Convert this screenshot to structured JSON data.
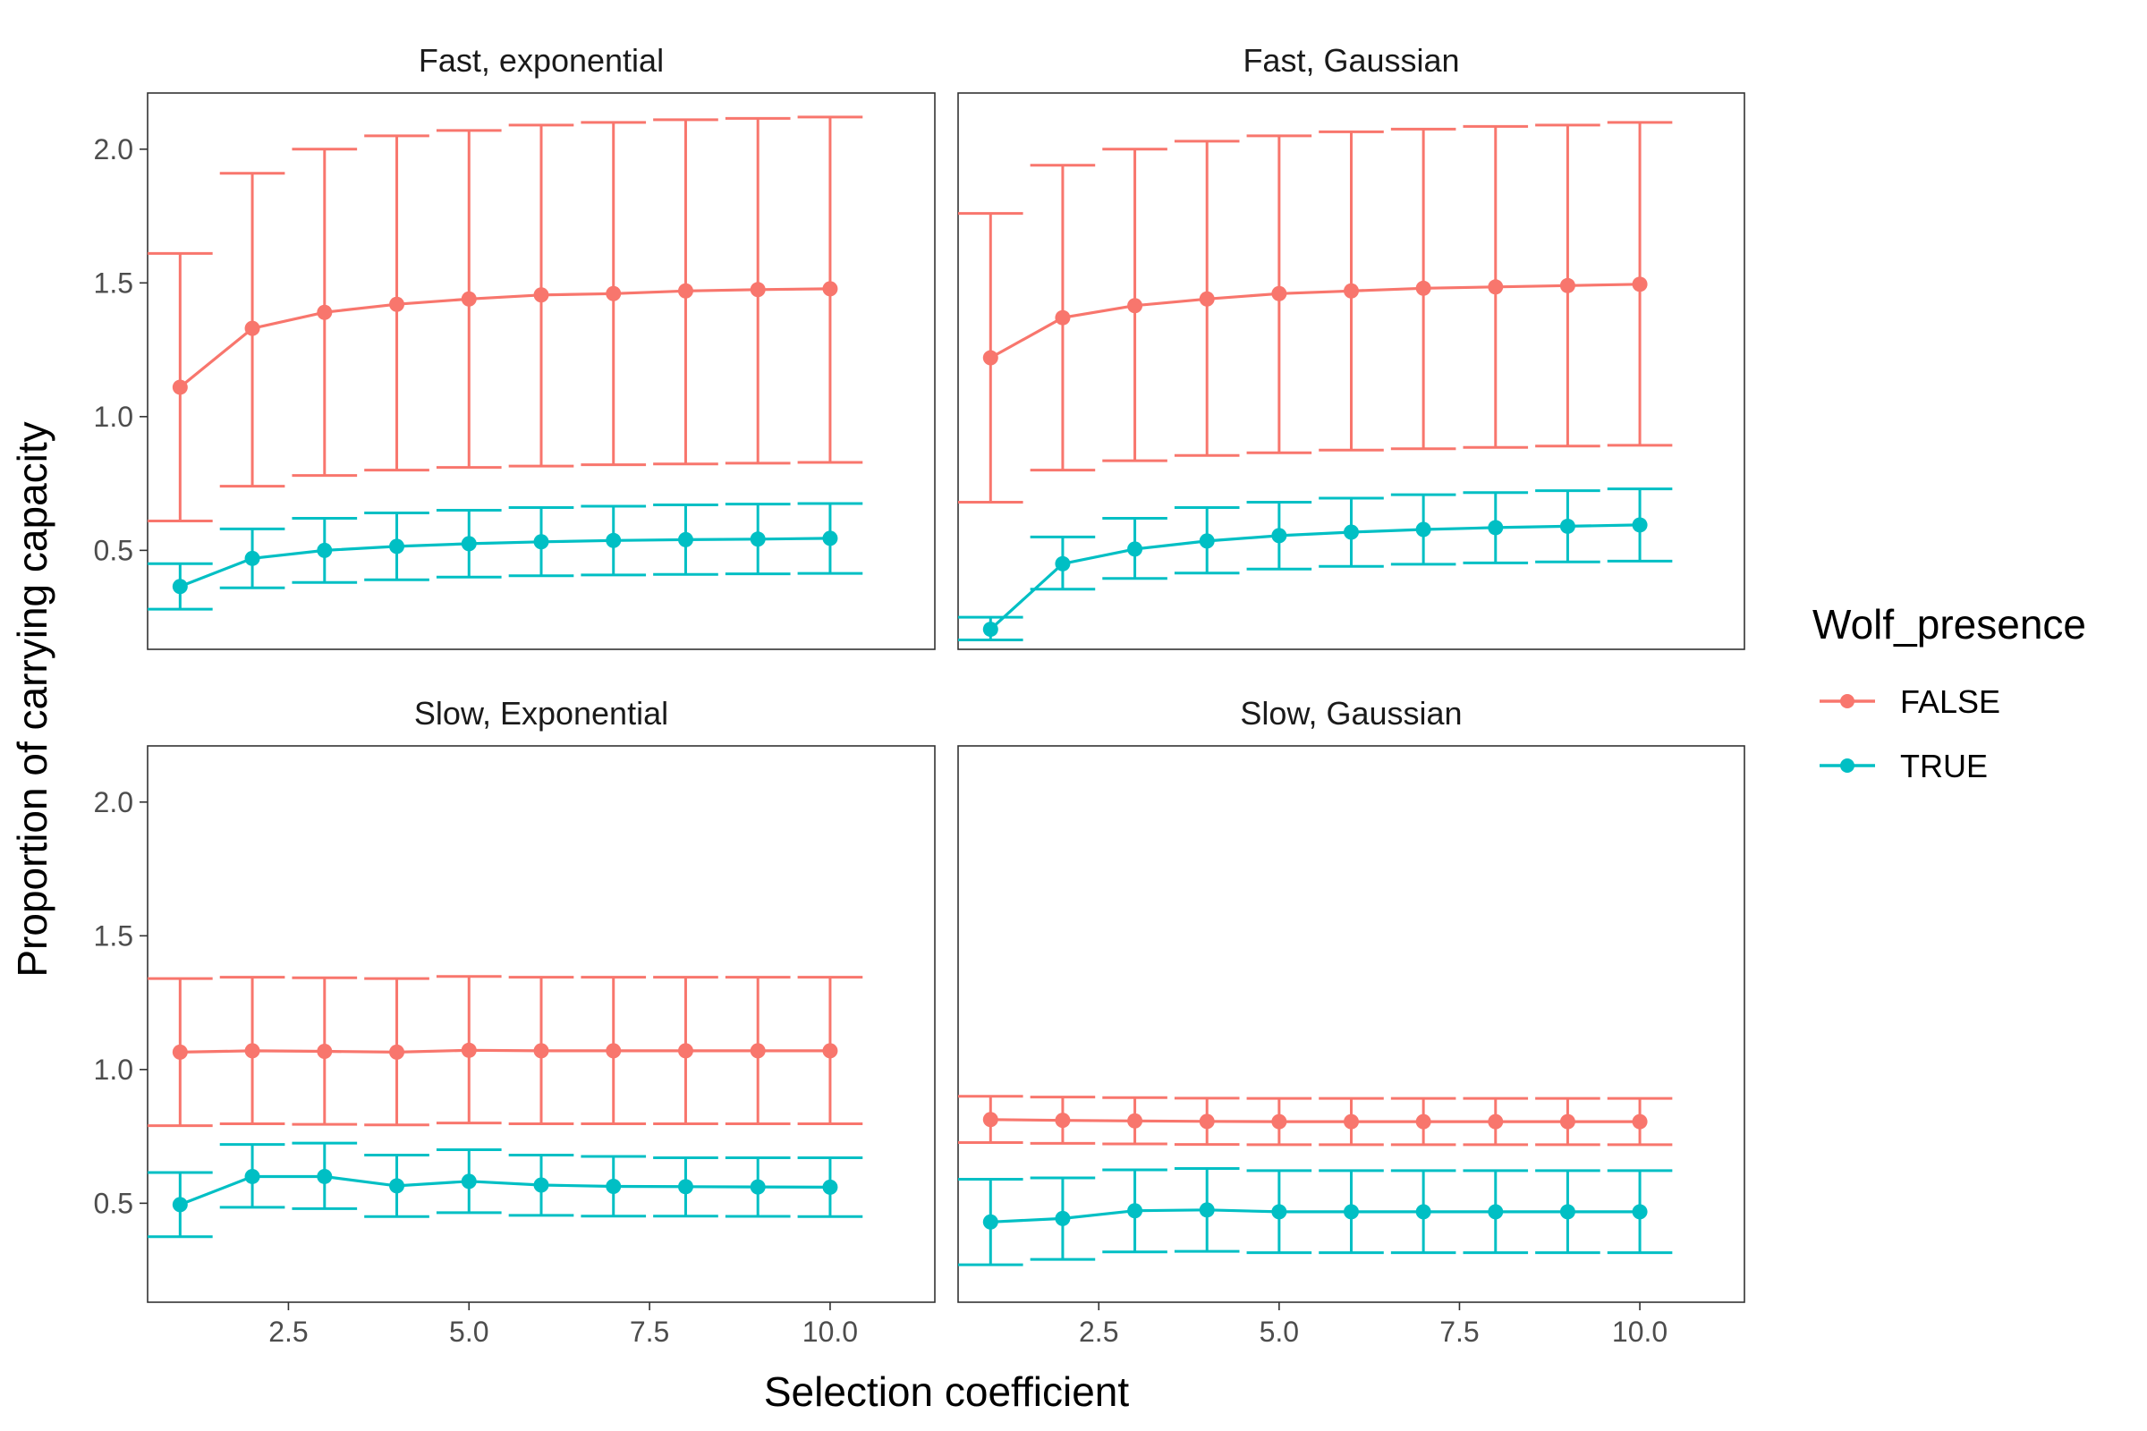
{
  "chart_data": {
    "type": "line",
    "xlabel": "Selection coefficient",
    "ylabel": "Proportion of carrying capacity",
    "xlim": [
      0.55,
      11.45
    ],
    "ylim": [
      0.13,
      2.21
    ],
    "x_ticks": [
      2.5,
      5.0,
      7.5,
      10.0
    ],
    "x_tick_labels": [
      "2.5",
      "5.0",
      "7.5",
      "10.0"
    ],
    "y_ticks": [
      0.5,
      1.0,
      1.5,
      2.0
    ],
    "y_tick_labels": [
      "0.5",
      "1.0",
      "1.5",
      "2.0"
    ],
    "grid": false,
    "legend": {
      "title": "Wolf_presence",
      "position": "right",
      "entries": [
        {
          "label": "FALSE",
          "color": "#F8766D"
        },
        {
          "label": "TRUE",
          "color": "#00BFC4"
        }
      ]
    },
    "x": [
      1,
      2,
      3,
      4,
      5,
      6,
      7,
      8,
      9,
      10
    ],
    "panels": [
      {
        "title": "Fast, exponential",
        "series": [
          {
            "name": "FALSE",
            "color": "#F8766D",
            "mean": [
              1.11,
              1.33,
              1.39,
              1.42,
              1.44,
              1.455,
              1.46,
              1.47,
              1.475,
              1.478
            ],
            "lower": [
              0.61,
              0.74,
              0.78,
              0.8,
              0.81,
              0.815,
              0.82,
              0.823,
              0.826,
              0.829
            ],
            "upper": [
              1.61,
              1.91,
              2.0,
              2.05,
              2.07,
              2.09,
              2.1,
              2.11,
              2.115,
              2.12
            ]
          },
          {
            "name": "TRUE",
            "color": "#00BFC4",
            "mean": [
              0.365,
              0.47,
              0.5,
              0.515,
              0.525,
              0.532,
              0.537,
              0.54,
              0.542,
              0.545
            ],
            "lower": [
              0.28,
              0.36,
              0.38,
              0.39,
              0.4,
              0.405,
              0.408,
              0.41,
              0.412,
              0.414
            ],
            "upper": [
              0.45,
              0.58,
              0.62,
              0.64,
              0.65,
              0.66,
              0.665,
              0.67,
              0.673,
              0.675
            ]
          }
        ]
      },
      {
        "title": "Fast, Gaussian",
        "series": [
          {
            "name": "FALSE",
            "color": "#F8766D",
            "mean": [
              1.22,
              1.37,
              1.415,
              1.44,
              1.46,
              1.47,
              1.48,
              1.485,
              1.49,
              1.495
            ],
            "lower": [
              0.68,
              0.8,
              0.835,
              0.855,
              0.865,
              0.875,
              0.88,
              0.885,
              0.89,
              0.893
            ],
            "upper": [
              1.76,
              1.94,
              2.0,
              2.03,
              2.05,
              2.065,
              2.075,
              2.085,
              2.09,
              2.1
            ]
          },
          {
            "name": "TRUE",
            "color": "#00BFC4",
            "mean": [
              0.205,
              0.45,
              0.505,
              0.535,
              0.555,
              0.568,
              0.578,
              0.585,
              0.59,
              0.595
            ],
            "lower": [
              0.165,
              0.355,
              0.395,
              0.415,
              0.43,
              0.44,
              0.448,
              0.453,
              0.457,
              0.46
            ],
            "upper": [
              0.25,
              0.55,
              0.62,
              0.66,
              0.68,
              0.695,
              0.708,
              0.716,
              0.723,
              0.73
            ]
          }
        ]
      },
      {
        "title": "Slow, Exponential",
        "series": [
          {
            "name": "FALSE",
            "color": "#F8766D",
            "mean": [
              1.065,
              1.07,
              1.068,
              1.065,
              1.072,
              1.07,
              1.07,
              1.07,
              1.07,
              1.07
            ],
            "lower": [
              0.79,
              0.797,
              0.795,
              0.793,
              0.8,
              0.797,
              0.797,
              0.797,
              0.797,
              0.797
            ],
            "upper": [
              1.34,
              1.345,
              1.343,
              1.34,
              1.348,
              1.345,
              1.345,
              1.345,
              1.345,
              1.345
            ]
          },
          {
            "name": "TRUE",
            "color": "#00BFC4",
            "mean": [
              0.495,
              0.6,
              0.6,
              0.565,
              0.582,
              0.568,
              0.563,
              0.562,
              0.561,
              0.56
            ],
            "lower": [
              0.375,
              0.485,
              0.48,
              0.45,
              0.465,
              0.455,
              0.452,
              0.452,
              0.451,
              0.45
            ],
            "upper": [
              0.615,
              0.72,
              0.725,
              0.68,
              0.7,
              0.68,
              0.675,
              0.67,
              0.67,
              0.67
            ]
          }
        ]
      },
      {
        "title": "Slow, Gaussian",
        "series": [
          {
            "name": "FALSE",
            "color": "#F8766D",
            "mean": [
              0.813,
              0.81,
              0.808,
              0.806,
              0.805,
              0.805,
              0.805,
              0.805,
              0.805,
              0.805
            ],
            "lower": [
              0.727,
              0.724,
              0.722,
              0.72,
              0.719,
              0.719,
              0.719,
              0.719,
              0.719,
              0.719
            ],
            "upper": [
              0.9,
              0.897,
              0.895,
              0.893,
              0.892,
              0.892,
              0.892,
              0.892,
              0.892,
              0.892
            ]
          },
          {
            "name": "TRUE",
            "color": "#00BFC4",
            "mean": [
              0.43,
              0.443,
              0.472,
              0.475,
              0.468,
              0.468,
              0.468,
              0.468,
              0.468,
              0.468
            ],
            "lower": [
              0.27,
              0.29,
              0.318,
              0.32,
              0.315,
              0.315,
              0.315,
              0.315,
              0.315,
              0.315
            ],
            "upper": [
              0.59,
              0.595,
              0.625,
              0.63,
              0.622,
              0.622,
              0.622,
              0.622,
              0.622,
              0.622
            ]
          }
        ]
      }
    ]
  }
}
